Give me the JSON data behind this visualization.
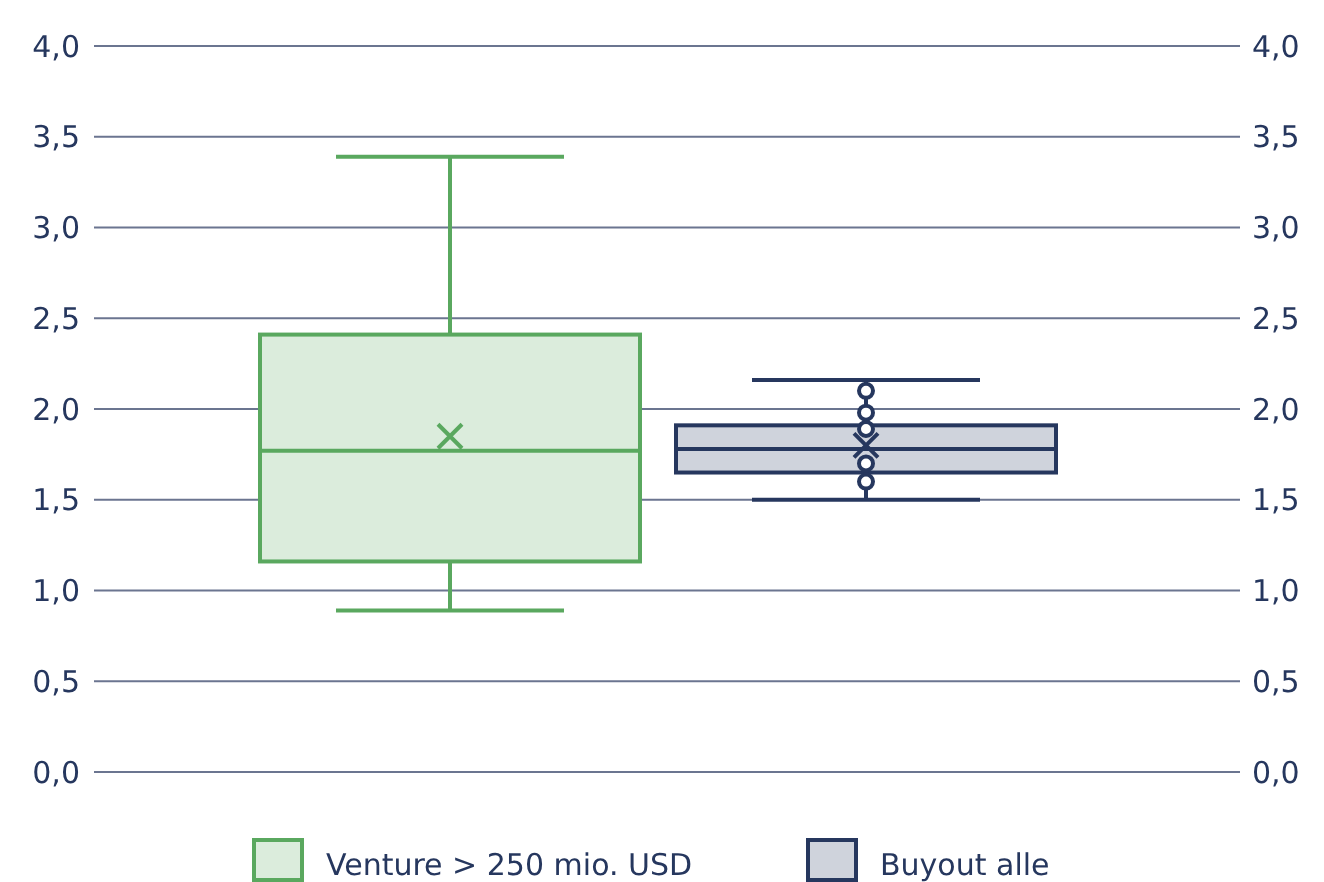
{
  "chart_data": {
    "type": "box",
    "categories": [
      null,
      null
    ],
    "series": [
      {
        "name": "Venture > 250 mio. USD",
        "color": "#5aa85f",
        "boxes": [
          {
            "low": 0.89,
            "q1": 1.16,
            "median": 1.77,
            "q3": 2.41,
            "high": 3.39,
            "mean": 1.85
          },
          null
        ]
      },
      {
        "name": "Buyout alle",
        "color": "#26375e",
        "boxes": [
          null,
          {
            "low": 1.5,
            "q1": 1.65,
            "median": 1.78,
            "q3": 1.91,
            "high": 2.16,
            "mean": 1.8,
            "outliers": [
              2.1,
              1.98,
              1.89,
              1.7,
              1.6
            ]
          }
        ]
      }
    ],
    "ylim": [
      0,
      4
    ],
    "yticks": [
      {
        "value": 0,
        "label": "0,0"
      },
      {
        "value": 0.5,
        "label": "0,5"
      },
      {
        "value": 1,
        "label": "1,0"
      },
      {
        "value": 1.5,
        "label": "1,5"
      },
      {
        "value": 2,
        "label": "2,0"
      },
      {
        "value": 2.5,
        "label": "2,5"
      },
      {
        "value": 3,
        "label": "3,0"
      },
      {
        "value": 3.5,
        "label": "3,5"
      },
      {
        "value": 4,
        "label": "4,0"
      }
    ],
    "y2lim": [
      0,
      4
    ],
    "y2ticks": [
      {
        "value": 0,
        "label": "0,0"
      },
      {
        "value": 0.5,
        "label": "0,5"
      },
      {
        "value": 1,
        "label": "1,0"
      },
      {
        "value": 1.5,
        "label": "1,5"
      },
      {
        "value": 2,
        "label": "2,0"
      },
      {
        "value": 2.5,
        "label": "2,5"
      },
      {
        "value": 3,
        "label": "3,0"
      },
      {
        "value": 3.5,
        "label": "3,5"
      },
      {
        "value": 4,
        "label": "4,0"
      }
    ],
    "grid": "y",
    "legend": "bottom"
  }
}
